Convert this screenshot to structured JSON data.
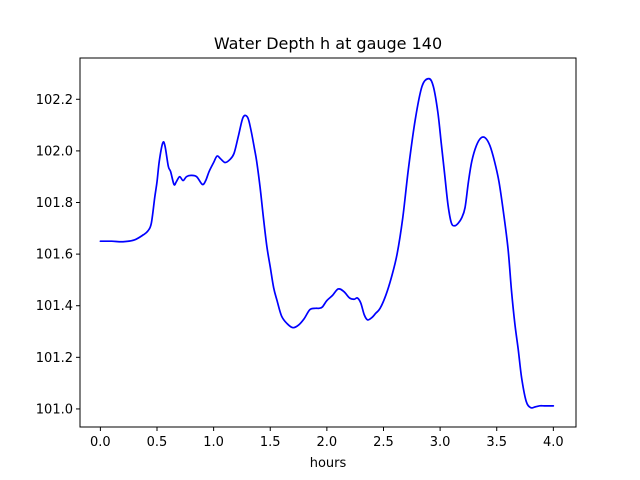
{
  "chart_data": {
    "type": "line",
    "title": "Water Depth h at gauge 140",
    "xlabel": "hours",
    "ylabel": "",
    "xlim": [
      -0.18,
      4.2
    ],
    "ylim": [
      100.93,
      102.36
    ],
    "grid": false,
    "xticks": [
      0.0,
      0.5,
      1.0,
      1.5,
      2.0,
      2.5,
      3.0,
      3.5,
      4.0
    ],
    "xtick_labels": [
      "0.0",
      "0.5",
      "1.0",
      "1.5",
      "2.0",
      "2.5",
      "3.0",
      "3.5",
      "4.0"
    ],
    "yticks": [
      101.0,
      101.2,
      101.4,
      101.6,
      101.8,
      102.0,
      102.2
    ],
    "ytick_labels": [
      "101.0",
      "101.2",
      "101.4",
      "101.6",
      "101.8",
      "102.0",
      "102.2"
    ],
    "series": [
      {
        "color": "#0000ff",
        "x": [
          0.0,
          0.1,
          0.2,
          0.3,
          0.38,
          0.42,
          0.45,
          0.48,
          0.5,
          0.52,
          0.55,
          0.57,
          0.6,
          0.62,
          0.65,
          0.67,
          0.7,
          0.73,
          0.76,
          0.8,
          0.85,
          0.9,
          0.93,
          0.96,
          1.0,
          1.03,
          1.06,
          1.1,
          1.14,
          1.18,
          1.22,
          1.26,
          1.3,
          1.33,
          1.36,
          1.38,
          1.41,
          1.44,
          1.47,
          1.5,
          1.53,
          1.56,
          1.6,
          1.65,
          1.7,
          1.75,
          1.8,
          1.85,
          1.9,
          1.93,
          1.96,
          2.0,
          2.05,
          2.1,
          2.15,
          2.2,
          2.24,
          2.27,
          2.3,
          2.33,
          2.36,
          2.4,
          2.43,
          2.47,
          2.52,
          2.57,
          2.62,
          2.67,
          2.72,
          2.78,
          2.84,
          2.9,
          2.94,
          2.98,
          3.01,
          3.04,
          3.07,
          3.1,
          3.13,
          3.16,
          3.19,
          3.22,
          3.25,
          3.28,
          3.32,
          3.36,
          3.4,
          3.44,
          3.48,
          3.52,
          3.56,
          3.6,
          3.63,
          3.66,
          3.69,
          3.72,
          3.76,
          3.8,
          3.84,
          3.88,
          3.92,
          3.95,
          3.98,
          4.0
        ],
        "y": [
          101.65,
          101.65,
          101.648,
          101.655,
          101.675,
          101.69,
          101.72,
          101.82,
          101.88,
          101.96,
          102.03,
          102.02,
          101.94,
          101.92,
          101.87,
          101.88,
          101.9,
          101.885,
          101.9,
          101.905,
          101.9,
          101.87,
          101.885,
          101.92,
          101.955,
          101.98,
          101.97,
          101.955,
          101.965,
          101.99,
          102.06,
          102.13,
          102.13,
          102.08,
          102.01,
          101.96,
          101.86,
          101.74,
          101.63,
          101.55,
          101.47,
          101.42,
          101.36,
          101.33,
          101.315,
          101.325,
          101.35,
          101.385,
          101.39,
          101.39,
          101.395,
          101.42,
          101.44,
          101.465,
          101.455,
          101.43,
          101.425,
          101.43,
          101.41,
          101.365,
          101.345,
          101.355,
          101.37,
          101.39,
          101.44,
          101.51,
          101.6,
          101.74,
          101.93,
          102.12,
          102.25,
          102.28,
          102.25,
          102.15,
          102.03,
          101.91,
          101.79,
          101.72,
          101.71,
          101.72,
          101.74,
          101.78,
          101.88,
          101.96,
          102.02,
          102.05,
          102.05,
          102.02,
          101.96,
          101.88,
          101.76,
          101.62,
          101.46,
          101.33,
          101.23,
          101.12,
          101.03,
          101.005,
          101.008,
          101.012,
          101.012,
          101.012,
          101.012,
          101.012
        ]
      }
    ]
  }
}
